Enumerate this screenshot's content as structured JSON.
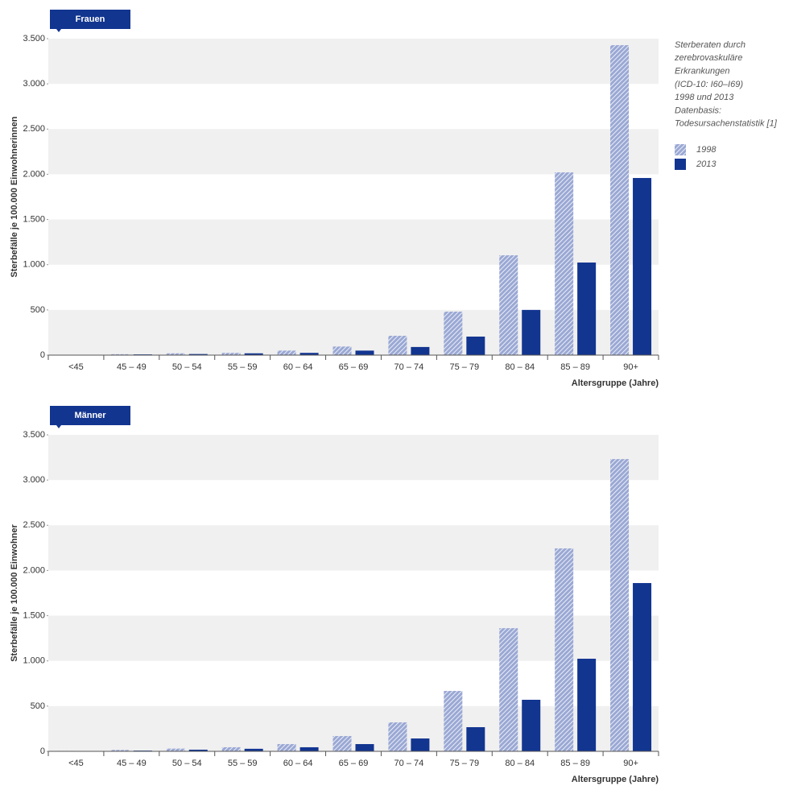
{
  "chart_data": [
    {
      "type": "bar",
      "title": "Frauen",
      "y_label": "Sterbefälle je 100.000 Einwohnerinnen",
      "x_label": "Altersgruppe (Jahre)",
      "annotation": [
        "Sterberaten durch",
        "zerebrovaskuläre",
        "Erkrankungen",
        "(ICD-10: I60–I69)",
        "1998 und 2013",
        "Datenbasis:",
        "Todesursachenstatistik [1]"
      ],
      "categories": [
        "<45",
        "45 – 49",
        "50 – 54",
        "55 – 59",
        "60 – 64",
        "65 – 69",
        "70 – 74",
        "75 – 79",
        "80 – 84",
        "85 – 89",
        "90+"
      ],
      "series": [
        {
          "name": "1998",
          "color": "#9aa8d4",
          "pattern": "hatch",
          "values": [
            3,
            10,
            20,
            25,
            50,
            95,
            214,
            481,
            1104,
            2021,
            3428
          ]
        },
        {
          "name": "2013",
          "color": "#123590",
          "values": [
            2,
            8,
            12,
            20,
            25,
            50,
            90,
            205,
            500,
            1024,
            1959
          ]
        }
      ],
      "ylim": [
        0,
        3500
      ],
      "yticks": [
        0,
        500,
        {
          "value": 1000,
          "label": "1.000"
        },
        {
          "value": 1500,
          "label": "1.500"
        },
        {
          "value": 2000,
          "label": "2.000"
        },
        {
          "value": 2500,
          "label": "2.500"
        },
        {
          "value": 3000,
          "label": "3.000"
        },
        {
          "value": 3500,
          "label": "3.500"
        }
      ],
      "grid": "bands"
    },
    {
      "type": "bar",
      "title": "Männer",
      "y_label": "Sterbefälle je 100.000 Einwohner",
      "x_label": "Altersgruppe (Jahre)",
      "categories": [
        "<45",
        "45 – 49",
        "50 – 54",
        "55 – 59",
        "60 – 64",
        "65 – 69",
        "70 – 74",
        "75 – 79",
        "80 – 84",
        "85 – 89",
        "90+"
      ],
      "series": [
        {
          "color": "#9aa8d4",
          "pattern": "hatch",
          "values": [
            5,
            15,
            30,
            45,
            80,
            169,
            320,
            668,
            1362,
            2244,
            3232
          ]
        },
        {
          "color": "#123590",
          "values": [
            3,
            8,
            18,
            28,
            45,
            80,
            142,
            267,
            570,
            1024,
            1861
          ]
        }
      ],
      "ylim": [
        0,
        3500
      ],
      "yticks": [
        0,
        500,
        {
          "value": 1000,
          "label": "1.000"
        },
        {
          "value": 1500,
          "label": "1.500"
        },
        {
          "value": 2000,
          "label": "2.000"
        },
        {
          "value": 2500,
          "label": "2.500"
        },
        {
          "value": 3000,
          "label": "3.000"
        },
        {
          "value": 3500,
          "label": "3.500"
        }
      ],
      "grid": "bands"
    }
  ]
}
